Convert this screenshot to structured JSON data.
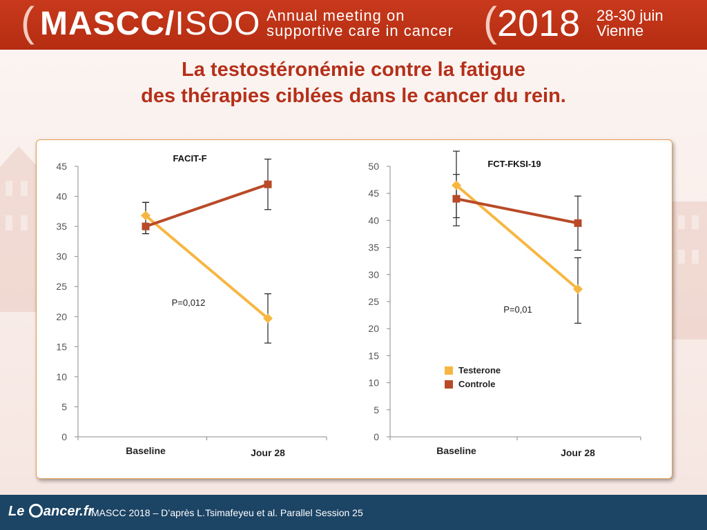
{
  "banner": {
    "org_bold": "MASCC/",
    "org_light": "ISOO",
    "subtitle_line1": "Annual meeting on",
    "subtitle_line2": "supportive care in cancer",
    "year": "2018",
    "dates_line1": "28-30 juin",
    "dates_line2": "Vienne"
  },
  "slide": {
    "title_line1": "La testostéronémie contre la fatigue",
    "title_line2": "des thérapies ciblées dans le cancer du rein."
  },
  "chart_data": [
    {
      "type": "line",
      "title": "FACIT-F",
      "categories": [
        "Baseline",
        "Jour 28"
      ],
      "ylim": [
        0,
        45
      ],
      "yticks": [
        0,
        5,
        10,
        15,
        20,
        25,
        30,
        35,
        40,
        45
      ],
      "annotation": "P=0,012",
      "series": [
        {
          "name": "Testerone",
          "color": "#f6b742",
          "values": [
            36.8,
            19.7
          ],
          "err_low": [
            33.8,
            15.6
          ],
          "err_high": [
            39.0,
            23.8
          ]
        },
        {
          "name": "Controle",
          "color": "#b84a28",
          "values": [
            35.0,
            42.0
          ],
          "err_low": [
            33.8,
            37.8
          ],
          "err_high": [
            39.0,
            46.2
          ]
        }
      ]
    },
    {
      "type": "line",
      "title": "FCT-FKSI-19",
      "categories": [
        "Baseline",
        "Jour 28"
      ],
      "ylim": [
        0,
        50
      ],
      "yticks": [
        0,
        5,
        10,
        15,
        20,
        25,
        30,
        35,
        40,
        45,
        50
      ],
      "annotation": "P=0,01",
      "legend_position": "bottom-left",
      "series": [
        {
          "name": "Testerone",
          "color": "#f6b742",
          "values": [
            46.5,
            27.3
          ],
          "err_low": [
            39.0,
            21.0
          ],
          "err_high": [
            52.8,
            33.1
          ]
        },
        {
          "name": "Controle",
          "color": "#b84a28",
          "values": [
            44.0,
            39.5
          ],
          "err_low": [
            40.5,
            34.5
          ],
          "err_high": [
            48.5,
            44.5
          ]
        }
      ]
    }
  ],
  "footer": {
    "logo_left": "Le ",
    "logo_right": "ancer.fr",
    "credit": "MASCC 2018 – D’après L.Tsimafeyeu et al. Parallel Session 25"
  }
}
